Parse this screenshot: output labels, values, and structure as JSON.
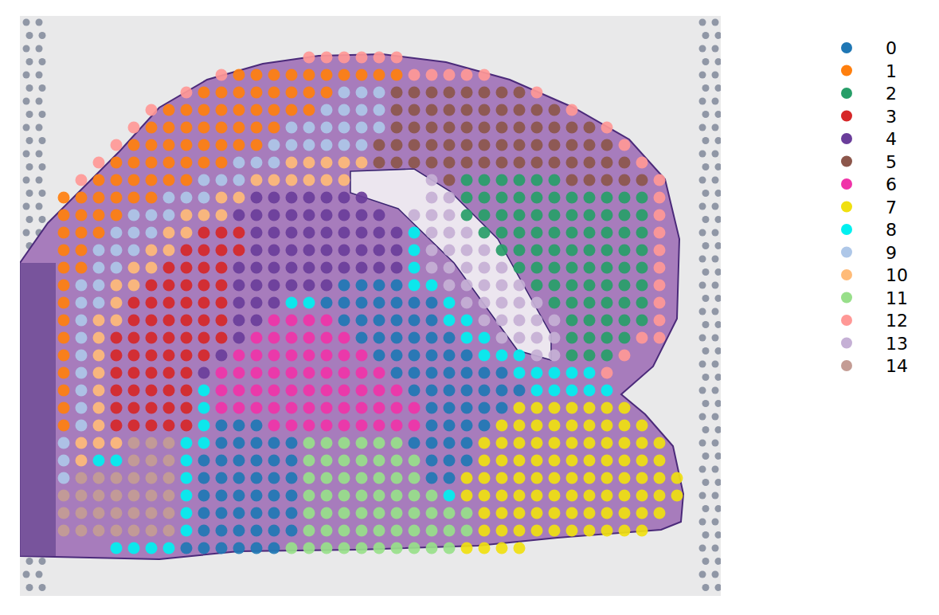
{
  "chart_data": {
    "type": "spatial",
    "tick_labels": false,
    "legend": "right",
    "xlim": [
      25,
      905
    ],
    "ylim": [
      748,
      20
    ],
    "x": [
      36,
      58,
      80,
      102,
      124,
      146,
      168,
      190,
      212,
      234,
      256,
      278,
      300,
      322,
      344,
      366,
      388,
      410,
      432,
      454,
      476,
      498,
      520,
      542,
      564,
      586,
      608,
      630,
      652,
      674,
      696,
      718,
      740,
      762,
      784,
      806,
      828,
      850
    ],
    "y": [
      72,
      94,
      116,
      138,
      160,
      182,
      204,
      226,
      248,
      270,
      292,
      314,
      336,
      358,
      380,
      402,
      424,
      446,
      468,
      490,
      512,
      534,
      556,
      578,
      600,
      622,
      644,
      666,
      688
    ],
    "clusters": [
      {
        "name": "0",
        "color": "#1f77b4"
      },
      {
        "name": "1",
        "color": "#ff7f0e"
      },
      {
        "name": "2",
        "color": "#279e68"
      },
      {
        "name": "3",
        "color": "#d62728"
      },
      {
        "name": "4",
        "color": "#6a3d9a"
      },
      {
        "name": "5",
        "color": "#8c564b"
      },
      {
        "name": "6",
        "color": "#f033a8"
      },
      {
        "name": "7",
        "color": "#f0e010"
      },
      {
        "name": "8",
        "color": "#00f0f0"
      },
      {
        "name": "9",
        "color": "#aec7e8"
      },
      {
        "name": "10",
        "color": "#ffbb78"
      },
      {
        "name": "11",
        "color": "#98df8a"
      },
      {
        "name": "12",
        "color": "#ff9896"
      },
      {
        "name": "13",
        "color": "#c5b0d5"
      },
      {
        "name": "14",
        "color": "#c49c94"
      }
    ],
    "cells": [
      [
        null,
        null,
        null,
        null,
        null,
        null,
        null,
        null,
        null,
        null,
        null,
        null,
        null,
        null,
        null,
        null,
        12,
        12,
        12,
        12,
        12,
        12,
        null,
        null,
        null,
        null,
        null,
        null,
        null,
        null,
        null,
        null,
        null,
        null,
        null,
        null,
        null,
        null
      ],
      [
        null,
        null,
        null,
        null,
        null,
        null,
        null,
        null,
        null,
        null,
        null,
        12,
        1,
        1,
        1,
        1,
        1,
        1,
        1,
        1,
        1,
        1,
        12,
        12,
        12,
        12,
        12,
        null,
        null,
        null,
        null,
        null,
        null,
        null,
        null,
        null,
        null,
        null
      ],
      [
        null,
        null,
        null,
        null,
        null,
        null,
        null,
        null,
        null,
        12,
        1,
        1,
        1,
        1,
        1,
        1,
        1,
        1,
        9,
        9,
        9,
        5,
        5,
        5,
        5,
        5,
        5,
        5,
        5,
        12,
        null,
        null,
        null,
        null,
        null,
        null,
        null,
        null
      ],
      [
        null,
        null,
        null,
        null,
        null,
        null,
        null,
        12,
        1,
        1,
        1,
        1,
        1,
        1,
        1,
        1,
        1,
        9,
        9,
        9,
        9,
        5,
        5,
        5,
        5,
        5,
        5,
        5,
        5,
        5,
        5,
        12,
        null,
        null,
        null,
        null,
        null,
        null
      ],
      [
        null,
        null,
        null,
        null,
        null,
        null,
        12,
        1,
        1,
        1,
        1,
        1,
        1,
        1,
        1,
        9,
        9,
        9,
        9,
        9,
        9,
        5,
        5,
        5,
        5,
        5,
        5,
        5,
        5,
        5,
        5,
        5,
        5,
        12,
        null,
        null,
        null,
        null
      ],
      [
        null,
        null,
        null,
        null,
        null,
        12,
        1,
        1,
        1,
        1,
        1,
        1,
        1,
        1,
        9,
        9,
        9,
        9,
        9,
        9,
        5,
        5,
        5,
        5,
        5,
        5,
        5,
        5,
        5,
        5,
        5,
        5,
        5,
        5,
        12,
        null,
        null,
        null
      ],
      [
        null,
        null,
        null,
        null,
        12,
        1,
        1,
        1,
        1,
        1,
        1,
        1,
        9,
        9,
        9,
        10,
        10,
        10,
        10,
        10,
        5,
        5,
        5,
        5,
        5,
        5,
        5,
        5,
        5,
        5,
        5,
        5,
        5,
        5,
        5,
        12,
        null,
        null
      ],
      [
        null,
        null,
        null,
        12,
        1,
        1,
        1,
        1,
        1,
        1,
        9,
        9,
        9,
        10,
        10,
        10,
        10,
        10,
        10,
        null,
        null,
        null,
        null,
        13,
        5,
        2,
        2,
        2,
        2,
        2,
        2,
        5,
        5,
        5,
        5,
        5,
        12,
        null
      ],
      [
        null,
        null,
        1,
        1,
        1,
        1,
        1,
        1,
        9,
        9,
        9,
        10,
        10,
        4,
        4,
        4,
        4,
        4,
        4,
        4,
        null,
        null,
        null,
        13,
        13,
        2,
        2,
        2,
        2,
        2,
        2,
        2,
        2,
        2,
        2,
        2,
        12,
        null
      ],
      [
        null,
        null,
        1,
        1,
        1,
        1,
        9,
        9,
        9,
        10,
        10,
        10,
        4,
        4,
        4,
        4,
        4,
        4,
        4,
        4,
        4,
        null,
        13,
        13,
        13,
        2,
        2,
        2,
        2,
        2,
        2,
        2,
        2,
        2,
        2,
        2,
        12,
        null
      ],
      [
        null,
        null,
        1,
        1,
        1,
        9,
        9,
        9,
        10,
        10,
        3,
        3,
        3,
        4,
        4,
        4,
        4,
        4,
        4,
        4,
        4,
        4,
        8,
        13,
        13,
        13,
        2,
        2,
        2,
        2,
        2,
        2,
        2,
        2,
        2,
        2,
        12,
        null
      ],
      [
        null,
        null,
        1,
        1,
        9,
        9,
        9,
        10,
        10,
        3,
        3,
        3,
        3,
        4,
        4,
        4,
        4,
        4,
        4,
        4,
        4,
        4,
        8,
        13,
        13,
        13,
        13,
        2,
        2,
        2,
        2,
        2,
        2,
        2,
        2,
        2,
        12,
        null
      ],
      [
        null,
        null,
        1,
        1,
        9,
        9,
        10,
        10,
        3,
        3,
        3,
        3,
        4,
        4,
        4,
        4,
        4,
        4,
        4,
        4,
        4,
        4,
        8,
        13,
        13,
        13,
        13,
        13,
        2,
        2,
        2,
        2,
        2,
        2,
        2,
        2,
        12,
        null
      ],
      [
        null,
        null,
        1,
        9,
        9,
        10,
        10,
        3,
        3,
        3,
        3,
        3,
        4,
        4,
        4,
        4,
        4,
        4,
        0,
        0,
        0,
        0,
        8,
        8,
        13,
        13,
        13,
        13,
        13,
        2,
        2,
        2,
        2,
        2,
        2,
        2,
        12,
        null
      ],
      [
        null,
        null,
        1,
        9,
        9,
        10,
        3,
        3,
        3,
        3,
        3,
        3,
        4,
        4,
        4,
        8,
        8,
        0,
        0,
        0,
        0,
        0,
        0,
        0,
        8,
        13,
        13,
        13,
        13,
        13,
        2,
        2,
        2,
        2,
        2,
        2,
        12,
        null
      ],
      [
        null,
        null,
        1,
        9,
        10,
        10,
        3,
        3,
        3,
        3,
        3,
        3,
        4,
        4,
        6,
        6,
        6,
        6,
        0,
        0,
        0,
        0,
        0,
        0,
        8,
        8,
        13,
        13,
        13,
        13,
        13,
        2,
        2,
        2,
        2,
        2,
        12,
        null
      ],
      [
        null,
        null,
        1,
        9,
        10,
        3,
        3,
        3,
        3,
        3,
        3,
        3,
        4,
        6,
        6,
        6,
        6,
        6,
        6,
        0,
        0,
        0,
        0,
        0,
        0,
        8,
        8,
        13,
        13,
        13,
        13,
        2,
        2,
        2,
        2,
        12,
        12,
        null
      ],
      [
        null,
        null,
        1,
        9,
        10,
        3,
        3,
        3,
        3,
        3,
        3,
        4,
        6,
        6,
        6,
        6,
        6,
        6,
        6,
        6,
        0,
        0,
        0,
        0,
        0,
        0,
        8,
        8,
        8,
        13,
        13,
        2,
        2,
        2,
        12,
        null,
        null,
        null
      ],
      [
        null,
        null,
        1,
        9,
        10,
        3,
        3,
        3,
        3,
        3,
        4,
        6,
        6,
        6,
        6,
        6,
        6,
        6,
        6,
        6,
        6,
        0,
        0,
        0,
        0,
        0,
        0,
        0,
        8,
        8,
        8,
        8,
        8,
        12,
        null,
        null,
        null,
        null
      ],
      [
        null,
        null,
        1,
        9,
        10,
        3,
        3,
        3,
        3,
        3,
        8,
        6,
        6,
        6,
        6,
        6,
        6,
        6,
        6,
        6,
        6,
        6,
        0,
        0,
        0,
        0,
        0,
        0,
        0,
        8,
        8,
        8,
        8,
        8,
        null,
        null,
        null,
        null
      ],
      [
        null,
        null,
        1,
        9,
        10,
        3,
        3,
        3,
        3,
        3,
        8,
        6,
        6,
        6,
        6,
        6,
        6,
        6,
        6,
        6,
        6,
        6,
        6,
        0,
        0,
        0,
        0,
        0,
        7,
        7,
        7,
        7,
        7,
        7,
        7,
        null,
        null,
        null
      ],
      [
        null,
        null,
        1,
        9,
        10,
        3,
        3,
        3,
        3,
        3,
        8,
        0,
        0,
        0,
        6,
        6,
        6,
        6,
        6,
        6,
        6,
        6,
        6,
        0,
        0,
        0,
        0,
        7,
        7,
        7,
        7,
        7,
        7,
        7,
        7,
        7,
        null,
        null
      ],
      [
        null,
        null,
        9,
        10,
        10,
        10,
        14,
        14,
        14,
        8,
        8,
        0,
        0,
        0,
        0,
        0,
        11,
        11,
        11,
        11,
        11,
        11,
        0,
        0,
        0,
        0,
        7,
        7,
        7,
        7,
        7,
        7,
        7,
        7,
        7,
        7,
        7,
        null
      ],
      [
        null,
        null,
        9,
        10,
        8,
        8,
        14,
        14,
        14,
        8,
        0,
        0,
        0,
        0,
        0,
        0,
        11,
        11,
        11,
        11,
        11,
        11,
        11,
        0,
        0,
        0,
        7,
        7,
        7,
        7,
        7,
        7,
        7,
        7,
        7,
        7,
        7,
        null
      ],
      [
        null,
        null,
        9,
        14,
        14,
        14,
        14,
        14,
        14,
        8,
        0,
        0,
        0,
        0,
        0,
        0,
        11,
        11,
        11,
        11,
        11,
        11,
        11,
        0,
        0,
        7,
        7,
        7,
        7,
        7,
        7,
        7,
        7,
        7,
        7,
        7,
        7,
        7
      ],
      [
        null,
        null,
        14,
        14,
        14,
        14,
        14,
        14,
        14,
        8,
        0,
        0,
        0,
        0,
        0,
        0,
        11,
        11,
        11,
        11,
        11,
        11,
        11,
        11,
        8,
        7,
        7,
        7,
        7,
        7,
        7,
        7,
        7,
        7,
        7,
        7,
        7,
        7
      ],
      [
        null,
        null,
        14,
        14,
        14,
        14,
        14,
        14,
        14,
        8,
        0,
        0,
        0,
        0,
        0,
        0,
        11,
        11,
        11,
        11,
        11,
        11,
        11,
        11,
        11,
        11,
        7,
        7,
        7,
        7,
        7,
        7,
        7,
        7,
        7,
        7,
        7,
        null
      ],
      [
        null,
        null,
        14,
        14,
        14,
        14,
        14,
        14,
        14,
        8,
        0,
        0,
        0,
        0,
        0,
        0,
        11,
        11,
        11,
        11,
        11,
        11,
        11,
        11,
        11,
        11,
        7,
        7,
        7,
        7,
        7,
        7,
        7,
        7,
        7,
        7,
        null,
        null
      ],
      [
        null,
        null,
        null,
        null,
        null,
        8,
        8,
        8,
        8,
        0,
        0,
        0,
        0,
        0,
        0,
        11,
        11,
        11,
        11,
        11,
        11,
        11,
        11,
        11,
        11,
        7,
        7,
        7,
        7,
        null,
        null,
        null,
        null,
        null,
        null,
        null,
        null,
        null
      ]
    ]
  }
}
